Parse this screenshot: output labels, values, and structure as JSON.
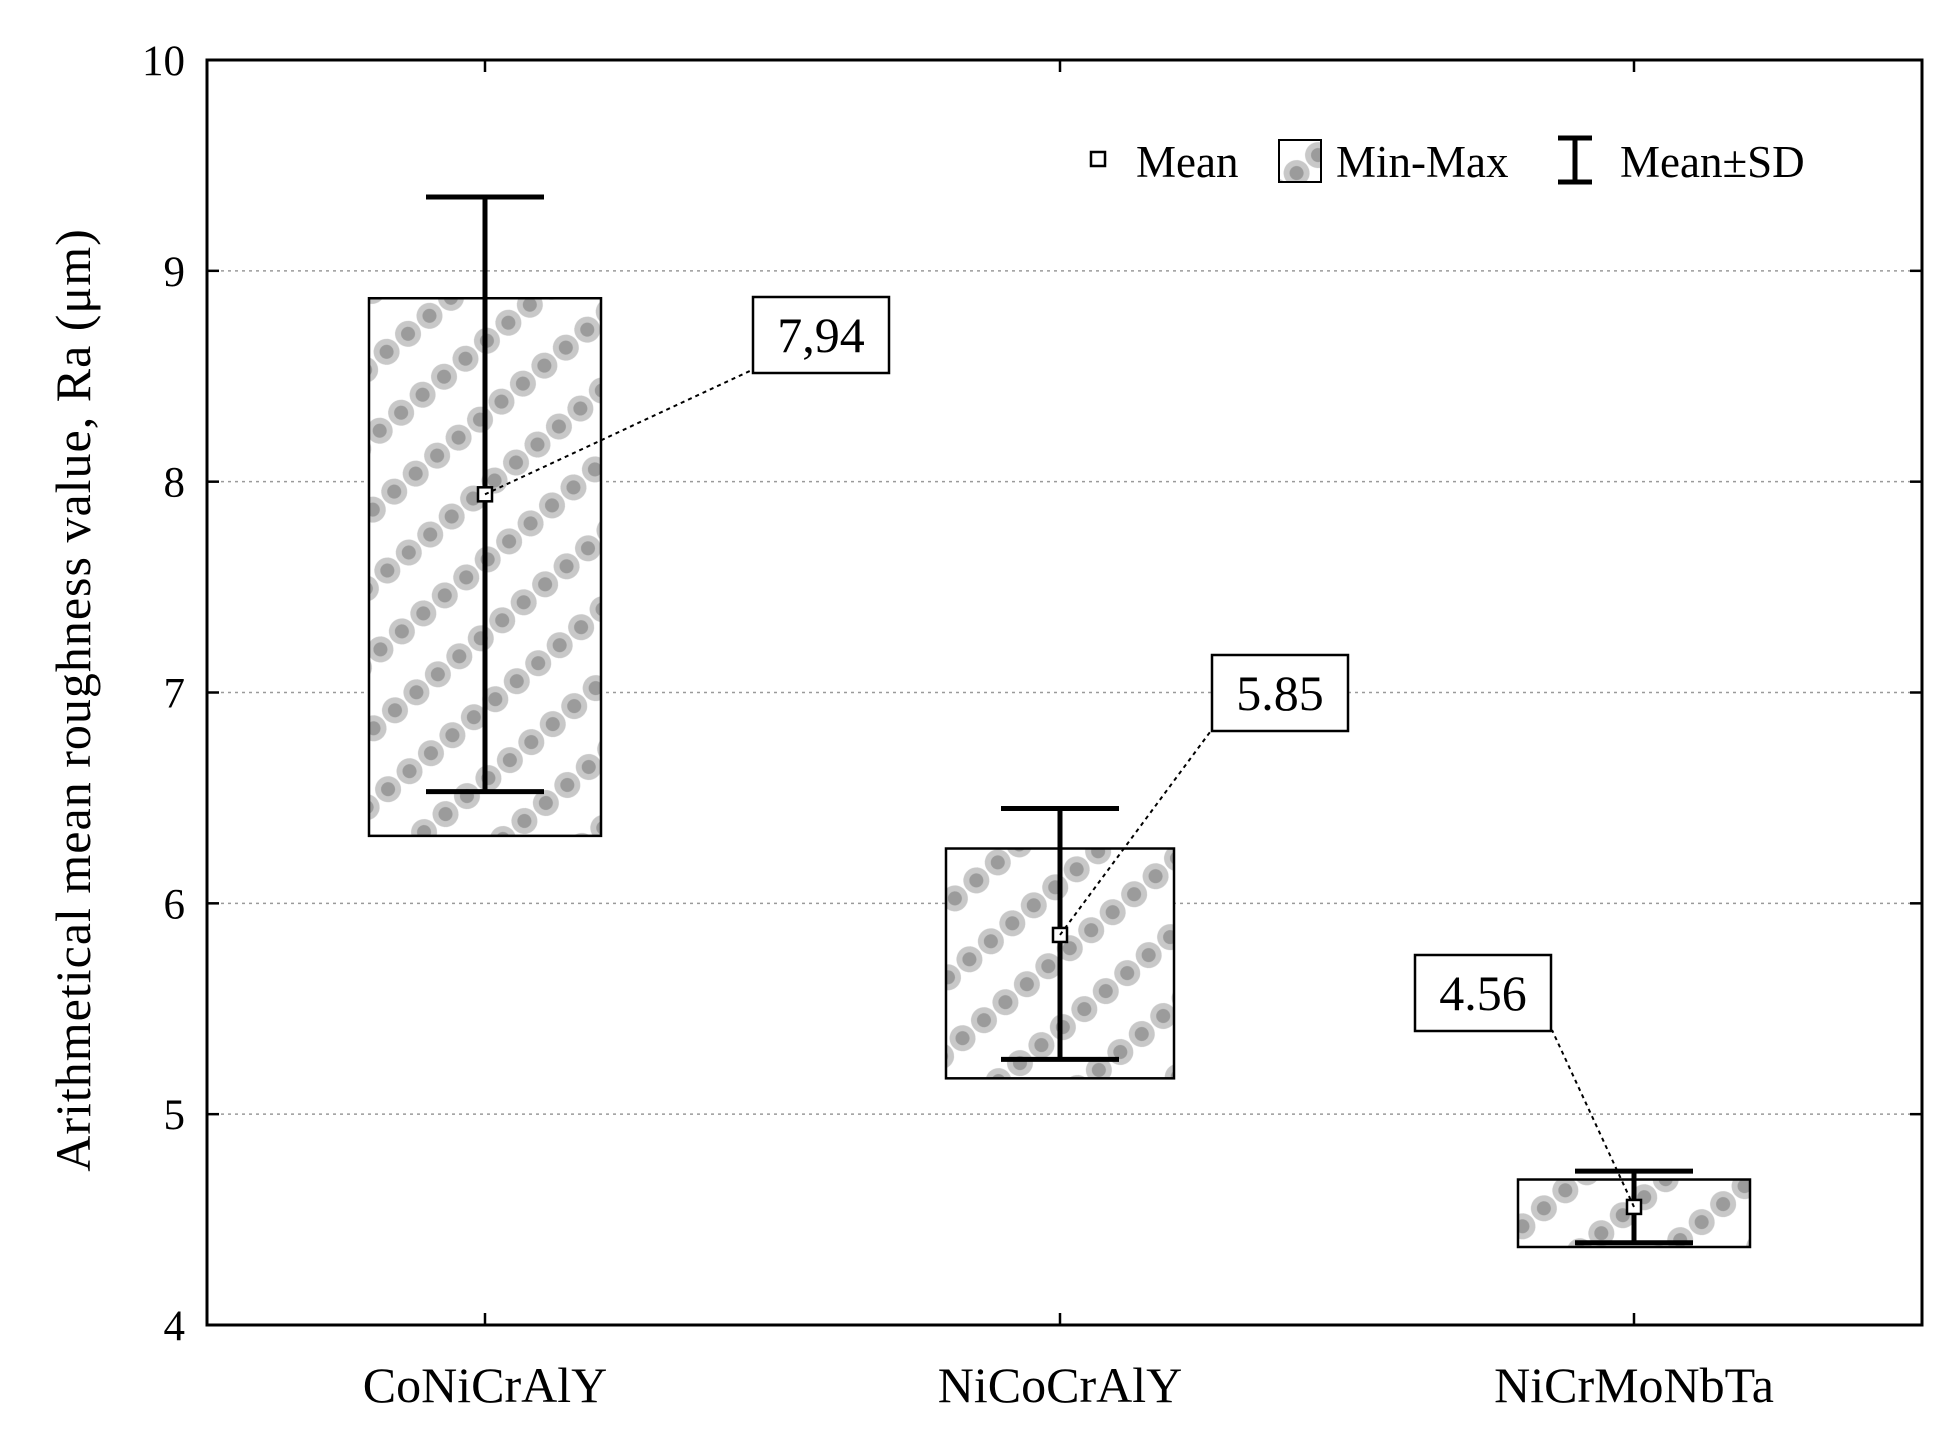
{
  "chart_data": {
    "type": "box",
    "title": "",
    "xlabel": "",
    "ylabel": "Arithmetical  mean  roughness  value, Ra (μm)",
    "ylim": [
      4,
      10
    ],
    "yticks": [
      "4",
      "5",
      "6",
      "7",
      "8",
      "9",
      "10"
    ],
    "grid": true,
    "legend_position": "top-right",
    "legend": {
      "mean": "Mean",
      "minmax": "Min-Max",
      "sd": "Mean±SD"
    },
    "categories": [
      "CoNiCrAlY",
      "NiCoCrAlY",
      "NiCrMoNbTa"
    ],
    "series": [
      {
        "name": "CoNiCrAlY",
        "min": 6.32,
        "max": 8.87,
        "mean": 7.94,
        "sd_low": 6.53,
        "sd_high": 9.35,
        "label": "7,94"
      },
      {
        "name": "NiCoCrAlY",
        "min": 5.17,
        "max": 6.26,
        "mean": 5.85,
        "sd_low": 5.26,
        "sd_high": 6.45,
        "label": "5.85"
      },
      {
        "name": "NiCrMoNbTa",
        "min": 4.37,
        "max": 4.69,
        "mean": 4.56,
        "sd_low": 4.39,
        "sd_high": 4.73,
        "label": "4.56"
      }
    ]
  }
}
